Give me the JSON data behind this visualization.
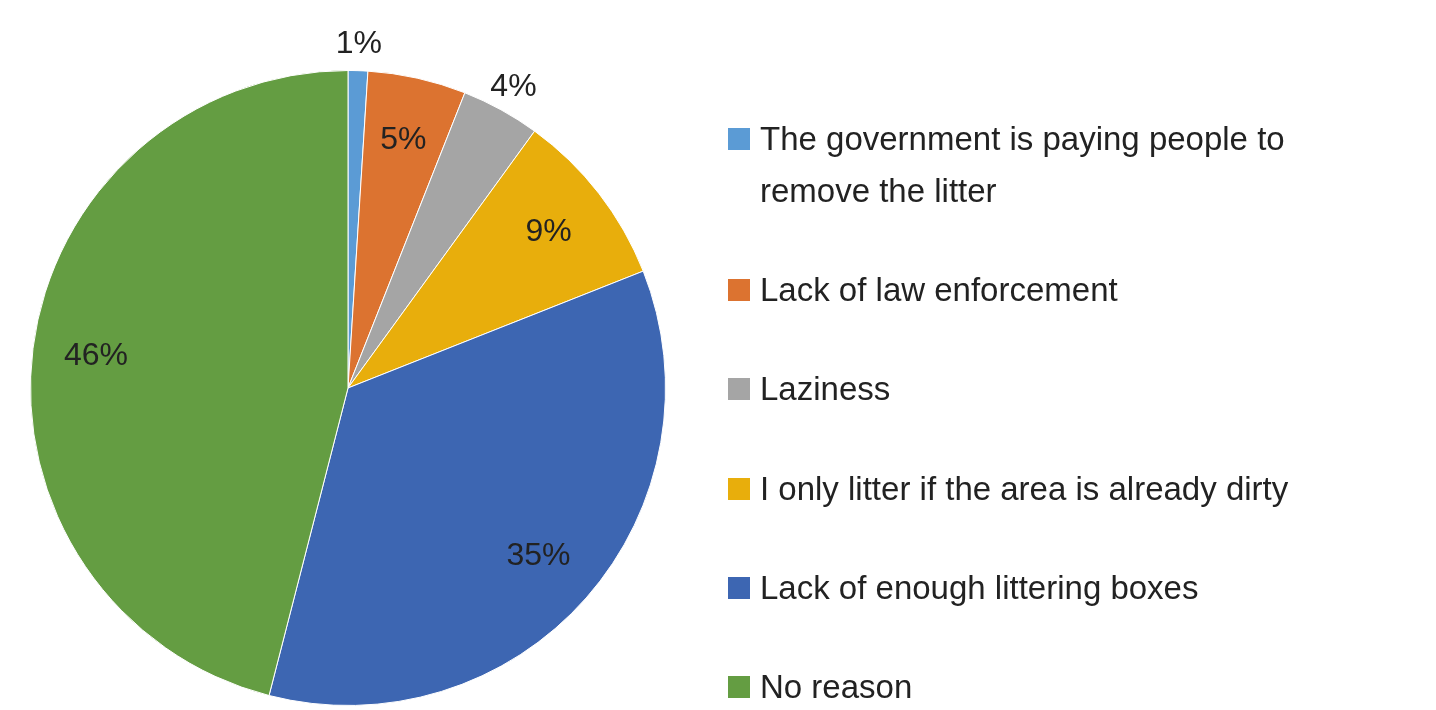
{
  "chart_data": {
    "type": "pie",
    "categories": [
      "The government is paying people to remove the litter",
      "Lack of law enforcement",
      "Laziness",
      "I only litter if the area is already dirty",
      "Lack of enough littering boxes",
      "No reason"
    ],
    "values": [
      1,
      5,
      4,
      9,
      35,
      46
    ],
    "colors": [
      "#5b9bd5",
      "#dc7330",
      "#a5a5a5",
      "#e8ae0c",
      "#3d66b2",
      "#649d42"
    ],
    "value_labels": [
      "1%",
      "5%",
      "4%",
      "9%",
      "35%",
      "46%"
    ],
    "legend": "right"
  }
}
